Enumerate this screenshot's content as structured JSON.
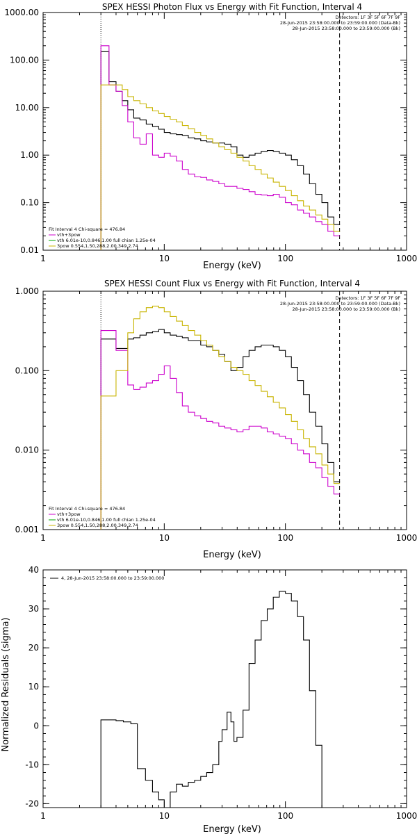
{
  "colors": {
    "black": "#000000",
    "magenta": "#cc00cc",
    "yellow": "#c8b400",
    "green": "#00aa00"
  },
  "chart_data": [
    {
      "type": "line",
      "title": "SPEX HESSI Photon Flux vs Energy with Fit Function, Interval 4",
      "xlabel": "Energy (keV)",
      "ylabel": "",
      "xscale": "log",
      "yscale": "log",
      "xlim": [
        1,
        1000
      ],
      "ylim": [
        0.01,
        1000
      ],
      "xtick_labels": [
        "1",
        "10",
        "100",
        "1000"
      ],
      "ytick_values": [
        0.01,
        0.1,
        1,
        10,
        100,
        1000
      ],
      "ytick_labels": [
        "0.01",
        "0.10",
        "1.00",
        "10.00",
        "100.00",
        "1000.00"
      ],
      "header": [
        "Detectors: 1F 3F 5F 6F 7F 9F",
        "28-Jun-2015 23:58:00.000 to 23:59:00.000 (Data-Bk)",
        "28-Jun-2015 23:58:00.000 to 23:59:00.000 (Bk)"
      ],
      "legend": [
        "Fit Interval 4   Chi-square = 476.84",
        "vth+3pow",
        "vth 6.01e-10,0.846,1.00  full chian 1.25e-04",
        "3pow 0.554,1.50,288,2.00,349,2.74"
      ],
      "vlines": [
        3,
        280
      ],
      "series": [
        {
          "color": "#000000",
          "edges": [
            3,
            3.5,
            4.0,
            4.5,
            5,
            5.6,
            6.3,
            7.1,
            8,
            9,
            10,
            11.2,
            12.6,
            14.1,
            15.8,
            17.8,
            20,
            22.4,
            25.1,
            28.2,
            31.6,
            35.5,
            39.8,
            44.7,
            50.1,
            56.2,
            63.1,
            70.8,
            79.4,
            89.1,
            100,
            112,
            126,
            141,
            158,
            178,
            200,
            224,
            251,
            282
          ],
          "values": [
            150,
            35,
            22,
            14,
            9,
            6,
            5.5,
            4.5,
            4.0,
            3.5,
            3.0,
            2.8,
            2.7,
            2.6,
            2.3,
            2.2,
            2.0,
            1.9,
            1.8,
            1.8,
            1.7,
            1.5,
            1.0,
            0.9,
            1.0,
            1.1,
            1.2,
            1.25,
            1.2,
            1.1,
            1.0,
            0.8,
            0.6,
            0.4,
            0.25,
            0.15,
            0.1,
            0.05,
            0.035
          ]
        },
        {
          "color": "#cc00cc",
          "edges": [
            3,
            3.5,
            4.0,
            4.5,
            5,
            5.6,
            6.3,
            7.1,
            8,
            9,
            10,
            11.2,
            12.6,
            14.1,
            15.8,
            17.8,
            20,
            22.4,
            25.1,
            28.2,
            31.6,
            35.5,
            39.8,
            44.7,
            50.1,
            56.2,
            63.1,
            70.8,
            79.4,
            89.1,
            100,
            112,
            126,
            141,
            158,
            178,
            200,
            224,
            251,
            282
          ],
          "values": [
            200,
            30,
            22,
            11,
            5.0,
            2.3,
            1.7,
            2.8,
            1.0,
            0.9,
            1.1,
            0.95,
            0.75,
            0.5,
            0.4,
            0.35,
            0.34,
            0.3,
            0.28,
            0.25,
            0.22,
            0.22,
            0.2,
            0.19,
            0.17,
            0.15,
            0.145,
            0.14,
            0.15,
            0.13,
            0.1,
            0.09,
            0.07,
            0.06,
            0.05,
            0.04,
            0.035,
            0.025,
            0.02
          ]
        },
        {
          "color": "#c8b400",
          "edges": [
            3,
            3.5,
            4.0,
            4.5,
            5,
            5.6,
            6.3,
            7.1,
            8,
            9,
            10,
            11.2,
            12.6,
            14.1,
            15.8,
            17.8,
            20,
            22.4,
            25.1,
            28.2,
            31.6,
            35.5,
            39.8,
            44.7,
            50.1,
            56.2,
            63.1,
            70.8,
            79.4,
            89.1,
            100,
            112,
            126,
            141,
            158,
            178,
            200,
            224,
            251,
            282
          ],
          "values": [
            30,
            30,
            30,
            24,
            17,
            14,
            12,
            10,
            8.5,
            7.5,
            6.5,
            5.7,
            5,
            4.2,
            3.6,
            3.0,
            2.6,
            2.2,
            1.8,
            1.5,
            1.3,
            1.1,
            0.9,
            0.75,
            0.6,
            0.5,
            0.4,
            0.33,
            0.27,
            0.22,
            0.18,
            0.14,
            0.11,
            0.085,
            0.07,
            0.055,
            0.045,
            0.035,
            0.025
          ]
        }
      ]
    },
    {
      "type": "line",
      "title": "SPEX HESSI Count Flux vs Energy with Fit Function, Interval 4",
      "xlabel": "Energy (keV)",
      "ylabel": "",
      "xscale": "log",
      "yscale": "log",
      "xlim": [
        1,
        1000
      ],
      "ylim": [
        0.001,
        1
      ],
      "xtick_labels": [
        "1",
        "10",
        "100",
        "1000"
      ],
      "ytick_values": [
        0.001,
        0.01,
        0.1,
        1
      ],
      "ytick_labels": [
        "0.001",
        "0.010",
        "0.100",
        "1.000"
      ],
      "header": [
        "Detectors: 1F 3F 5F 6F 7F 9F",
        "28-Jun-2015 23:58:00.000 to 23:59:00.000 (Data-Bk)",
        "28-Jun-2015 23:58:00.000 to 23:59:00.000 (Bk)"
      ],
      "legend": [
        "Fit Interval 4   Chi-square = 476.84",
        "vth+3pow",
        "vth 6.01e-10,0.846,1.00  full chian 1.25e-04",
        "3pow 0.554,1.50,288,2.00,349,2.74"
      ],
      "vlines": [
        3,
        280
      ],
      "series": [
        {
          "color": "#000000",
          "edges": [
            3,
            4,
            5,
            5.6,
            6.3,
            7.1,
            8,
            9,
            10,
            11.2,
            12.6,
            14.1,
            15.8,
            17.8,
            20,
            22.4,
            25.1,
            28.2,
            31.6,
            35.5,
            39.8,
            44.7,
            50.1,
            56.2,
            63.1,
            70.8,
            79.4,
            89.1,
            100,
            112,
            126,
            141,
            158,
            178,
            200,
            224,
            251,
            282
          ],
          "values": [
            0.25,
            0.19,
            0.25,
            0.26,
            0.28,
            0.3,
            0.31,
            0.33,
            0.3,
            0.28,
            0.27,
            0.26,
            0.24,
            0.24,
            0.21,
            0.2,
            0.18,
            0.16,
            0.13,
            0.1,
            0.11,
            0.15,
            0.18,
            0.2,
            0.21,
            0.21,
            0.2,
            0.18,
            0.15,
            0.11,
            0.075,
            0.05,
            0.03,
            0.02,
            0.012,
            0.007,
            0.004
          ]
        },
        {
          "color": "#cc00cc",
          "edges": [
            3,
            4,
            5,
            5.6,
            6.3,
            7.1,
            8,
            9,
            10,
            11.2,
            12.6,
            14.1,
            15.8,
            17.8,
            20,
            22.4,
            25.1,
            28.2,
            31.6,
            35.5,
            39.8,
            44.7,
            50.1,
            56.2,
            63.1,
            70.8,
            79.4,
            89.1,
            100,
            112,
            126,
            141,
            158,
            178,
            200,
            224,
            251,
            282
          ],
          "values": [
            0.32,
            0.18,
            0.066,
            0.058,
            0.062,
            0.07,
            0.075,
            0.09,
            0.115,
            0.08,
            0.053,
            0.036,
            0.03,
            0.027,
            0.025,
            0.023,
            0.022,
            0.02,
            0.019,
            0.018,
            0.017,
            0.018,
            0.02,
            0.02,
            0.019,
            0.017,
            0.016,
            0.015,
            0.014,
            0.012,
            0.01,
            0.009,
            0.007,
            0.006,
            0.0045,
            0.0035,
            0.0028
          ]
        },
        {
          "color": "#c8b400",
          "edges": [
            3,
            4,
            5,
            5.6,
            6.3,
            7.1,
            8,
            9,
            10,
            11.2,
            12.6,
            14.1,
            15.8,
            17.8,
            20,
            22.4,
            25.1,
            28.2,
            31.6,
            35.5,
            39.8,
            44.7,
            50.1,
            56.2,
            63.1,
            70.8,
            79.4,
            89.1,
            100,
            112,
            126,
            141,
            158,
            178,
            200,
            224,
            251,
            282
          ],
          "values": [
            0.048,
            0.1,
            0.3,
            0.45,
            0.55,
            0.62,
            0.65,
            0.62,
            0.55,
            0.48,
            0.42,
            0.37,
            0.32,
            0.28,
            0.24,
            0.21,
            0.18,
            0.15,
            0.13,
            0.11,
            0.1,
            0.09,
            0.075,
            0.065,
            0.055,
            0.047,
            0.04,
            0.034,
            0.028,
            0.023,
            0.018,
            0.014,
            0.011,
            0.009,
            0.0065,
            0.005,
            0.0038
          ]
        }
      ]
    },
    {
      "type": "line",
      "title": "",
      "xlabel": "Energy (keV)",
      "ylabel": "Normalized Residuals (sigma)",
      "xscale": "log",
      "yscale": "linear",
      "xlim": [
        1,
        1000
      ],
      "ylim": [
        -21,
        40
      ],
      "xtick_labels": [
        "1",
        "10",
        "100",
        "1000"
      ],
      "ytick_values": [
        -20,
        -10,
        0,
        10,
        20,
        30,
        40
      ],
      "ytick_labels": [
        "-20",
        "-10",
        "0",
        "10",
        "20",
        "30",
        "40"
      ],
      "header": [],
      "legend": [
        "4, 28-Jun-2015 23:58:00.000 to 23:59:00.000"
      ],
      "vlines": [],
      "series": [
        {
          "color": "#000000",
          "edges": [
            3,
            4,
            4.6,
            5.3,
            6,
            7,
            8,
            9,
            10,
            11.2,
            12.6,
            14.1,
            15.8,
            17.8,
            20,
            22.4,
            25.1,
            28.2,
            30,
            33,
            35.5,
            37.6,
            39.8,
            44.7,
            50.1,
            56.2,
            63.1,
            70.8,
            79.4,
            89.1,
            100,
            112,
            126,
            141,
            158,
            178,
            200,
            224,
            251,
            282
          ],
          "values": [
            1.5,
            1.3,
            1.0,
            0.5,
            -11,
            -14,
            -17,
            -19,
            -21,
            -17,
            -15,
            -15.5,
            -14.5,
            -14,
            -13,
            -12,
            -10,
            -4,
            -1,
            3.5,
            1,
            -4,
            -3,
            4,
            16,
            22,
            27,
            30,
            33,
            34.5,
            34,
            32,
            28,
            22,
            9,
            -5,
            -21,
            -21,
            -21
          ]
        }
      ]
    }
  ]
}
